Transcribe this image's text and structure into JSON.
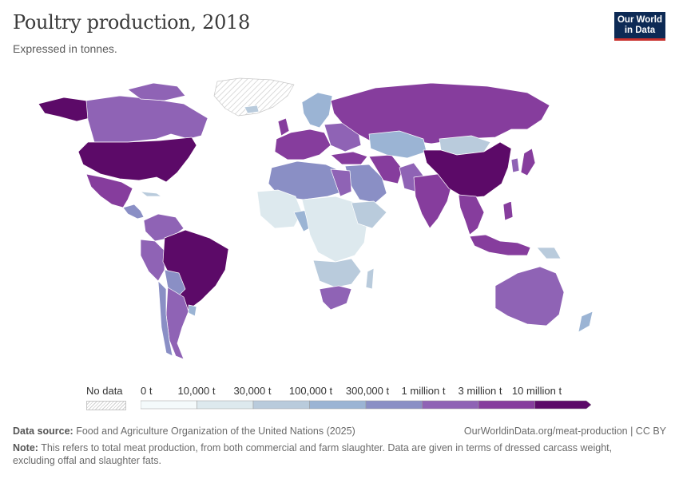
{
  "header": {
    "title": "Poultry production, 2018",
    "subtitle": "Expressed in tonnes."
  },
  "logo": {
    "line1": "Our World",
    "line2": "in Data"
  },
  "legend": {
    "no_data_label": "No data",
    "bins": [
      "0 t",
      "10,000 t",
      "30,000 t",
      "100,000 t",
      "300,000 t",
      "1 million t",
      "3 million t",
      "10 million t"
    ],
    "colors": [
      "#f4fafb",
      "#dde9ee",
      "#b9cbdc",
      "#9bb4d4",
      "#8a8fc5",
      "#8f63b5",
      "#863d9d",
      "#5c0a68"
    ]
  },
  "regions": [
    {
      "name": "United States",
      "bin": 7
    },
    {
      "name": "Brazil",
      "bin": 7
    },
    {
      "name": "China",
      "bin": 7
    },
    {
      "name": "Canada",
      "bin": 5
    },
    {
      "name": "Russia",
      "bin": 6
    },
    {
      "name": "India",
      "bin": 6
    },
    {
      "name": "Mexico",
      "bin": 6
    },
    {
      "name": "Argentina",
      "bin": 5
    },
    {
      "name": "Australia",
      "bin": 5
    },
    {
      "name": "Indonesia",
      "bin": 6
    },
    {
      "name": "South Africa",
      "bin": 5
    },
    {
      "name": "Kazakhstan",
      "bin": 3
    },
    {
      "name": "Greenland",
      "bin": null
    }
  ],
  "footer": {
    "source_label": "Data source:",
    "source_text": "Food and Agriculture Organization of the United Nations (2025)",
    "url": "OurWorldinData.org/meat-production | CC BY",
    "note_label": "Note:",
    "note_text": "This refers to total meat production, from both commercial and farm slaughter. Data are given in terms of dressed carcass weight, excluding offal and slaughter fats."
  }
}
